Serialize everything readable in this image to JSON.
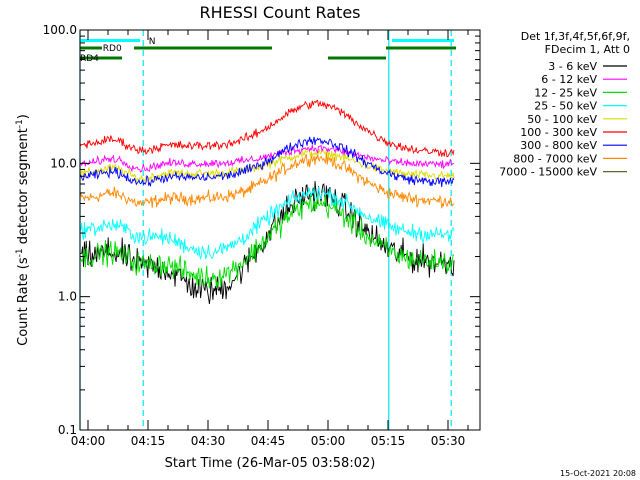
{
  "chart_data": {
    "type": "line",
    "title": "RHESSI Count Rates",
    "xlabel": "Start Time (26-Mar-05 03:58:02)",
    "ylabel": "Count Rate (s",
    "ylabel_sup": "-1",
    "ylabel_rest": " detector segment",
    "ylabel_sup2": "-1",
    "ylabel_end": ")",
    "y_scale": "log",
    "ylim": [
      0.1,
      100.0
    ],
    "y_ticks": [
      "0.1",
      "1.0",
      "10.0",
      "100.0"
    ],
    "x_range_minutes": [
      -2,
      98
    ],
    "x_ticks": [
      "04:00",
      "04:15",
      "04:30",
      "04:45",
      "05:00",
      "05:15",
      "05:30"
    ],
    "timestamp": "15-Oct-2021 20:08",
    "legend_header": [
      "Det 1f,3f,4f,5f,6f,9f,",
      "FDecim 1, Att 0"
    ],
    "flag_labels": {
      "night": "N",
      "rd0": "RD0",
      "rd4": "RD4"
    },
    "series": [
      {
        "name": "3 - 6 keV",
        "color": "#000000"
      },
      {
        "name": "6 - 12 keV",
        "color": "#ff00ff"
      },
      {
        "name": "12 - 25 keV",
        "color": "#00dd00"
      },
      {
        "name": "25 - 50 keV",
        "color": "#00ffff"
      },
      {
        "name": "50 - 100 keV",
        "color": "#dcdc00"
      },
      {
        "name": "100 - 300 keV",
        "color": "#ff0000"
      },
      {
        "name": "300 - 800 keV",
        "color": "#0000ff"
      },
      {
        "name": "800 - 7000 keV",
        "color": "#ff8800"
      },
      {
        "name": "7000 - 15000 keV",
        "color": "#556b2f"
      }
    ],
    "approx_levels": {
      "3 - 6 keV": {
        "start": 2.0,
        "dip": 1.1,
        "peak": 6.0,
        "end": 1.8
      },
      "6 - 12 keV": {
        "start": 10.0,
        "peak": 13.0,
        "end": 9.8
      },
      "12 - 25 keV": {
        "start": 2.0,
        "dip": 1.4,
        "peak": 5.0,
        "end": 1.8
      },
      "25 - 50 keV": {
        "start": 3.2,
        "dip": 2.2,
        "peak": 6.0,
        "end": 2.9
      },
      "50 - 100 keV": {
        "start": 8.5,
        "peak": 12.0,
        "end": 8.0
      },
      "100 - 300 keV": {
        "start": 14.0,
        "peak": 28.0,
        "end": 12.0
      },
      "300 - 800 keV": {
        "start": 8.0,
        "peak": 15.0,
        "end": 7.2
      },
      "800 - 7000 keV": {
        "start": 5.5,
        "peak": 11.0,
        "end": 5.2
      }
    }
  }
}
